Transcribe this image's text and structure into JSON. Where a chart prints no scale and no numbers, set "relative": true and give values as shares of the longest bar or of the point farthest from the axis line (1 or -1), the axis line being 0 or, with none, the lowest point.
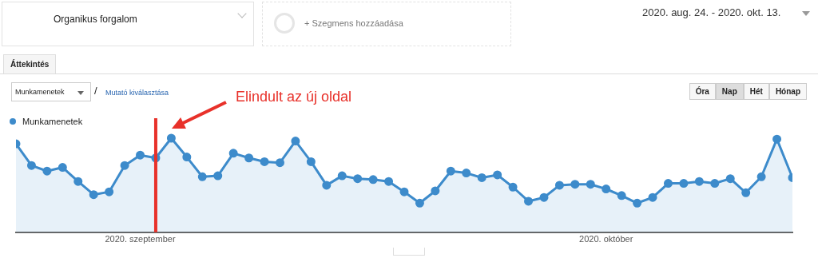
{
  "chart_data": {
    "type": "area",
    "relative": true,
    "legend": "top left",
    "marker": "circle",
    "x": [
      "2020-08-24",
      "2020-08-25",
      "2020-08-26",
      "2020-08-27",
      "2020-08-28",
      "2020-08-29",
      "2020-08-30",
      "2020-08-31",
      "2020-09-01",
      "2020-09-02",
      "2020-09-03",
      "2020-09-04",
      "2020-09-05",
      "2020-09-06",
      "2020-09-07",
      "2020-09-08",
      "2020-09-09",
      "2020-09-10",
      "2020-09-11",
      "2020-09-12",
      "2020-09-13",
      "2020-09-14",
      "2020-09-15",
      "2020-09-16",
      "2020-09-17",
      "2020-09-18",
      "2020-09-19",
      "2020-09-20",
      "2020-09-21",
      "2020-09-22",
      "2020-09-23",
      "2020-09-24",
      "2020-09-25",
      "2020-09-26",
      "2020-09-27",
      "2020-09-28",
      "2020-09-29",
      "2020-09-30",
      "2020-10-01",
      "2020-10-02",
      "2020-10-03",
      "2020-10-04",
      "2020-10-05",
      "2020-10-06",
      "2020-10-07",
      "2020-10-08",
      "2020-10-09",
      "2020-10-10",
      "2020-10-11",
      "2020-10-12",
      "2020-10-13"
    ],
    "xlim": [
      "2020-08-24",
      "2020-10-13"
    ],
    "xticks": [
      {
        "value": "2020-09-01",
        "label": "2020. szeptember"
      },
      {
        "value": "2020-10-01",
        "label": "2020. október"
      }
    ],
    "series": [
      {
        "name": "Munkamenetek",
        "color": "#3d8bcb",
        "values": [
          0.94,
          0.71,
          0.65,
          0.69,
          0.54,
          0.4,
          0.43,
          0.71,
          0.82,
          0.79,
          1,
          0.8,
          0.59,
          0.6,
          0.84,
          0.79,
          0.75,
          0.74,
          0.97,
          0.75,
          0.5,
          0.6,
          0.57,
          0.56,
          0.54,
          0.43,
          0.31,
          0.44,
          0.65,
          0.63,
          0.58,
          0.61,
          0.48,
          0.33,
          0.37,
          0.5,
          0.51,
          0.51,
          0.46,
          0.39,
          0.31,
          0.37,
          0.52,
          0.52,
          0.54,
          0.52,
          0.57,
          0.42,
          0.59,
          0.99,
          0.58
        ]
      }
    ],
    "ref_lines": [
      {
        "axis": "x",
        "value": "2020-09-02",
        "label": "Elindult az új oldal",
        "color": "#e8312a"
      }
    ],
    "annotations": [
      "Organikus forgalom",
      "+ Szegmens hozzáadása",
      "2020. aug. 24. - 2020. okt. 13.",
      "Áttekintés",
      "Munkamenetek",
      "/",
      "Mutató kiválasztása",
      "Óra",
      "Nap",
      "Hét",
      "Hónap"
    ]
  }
}
